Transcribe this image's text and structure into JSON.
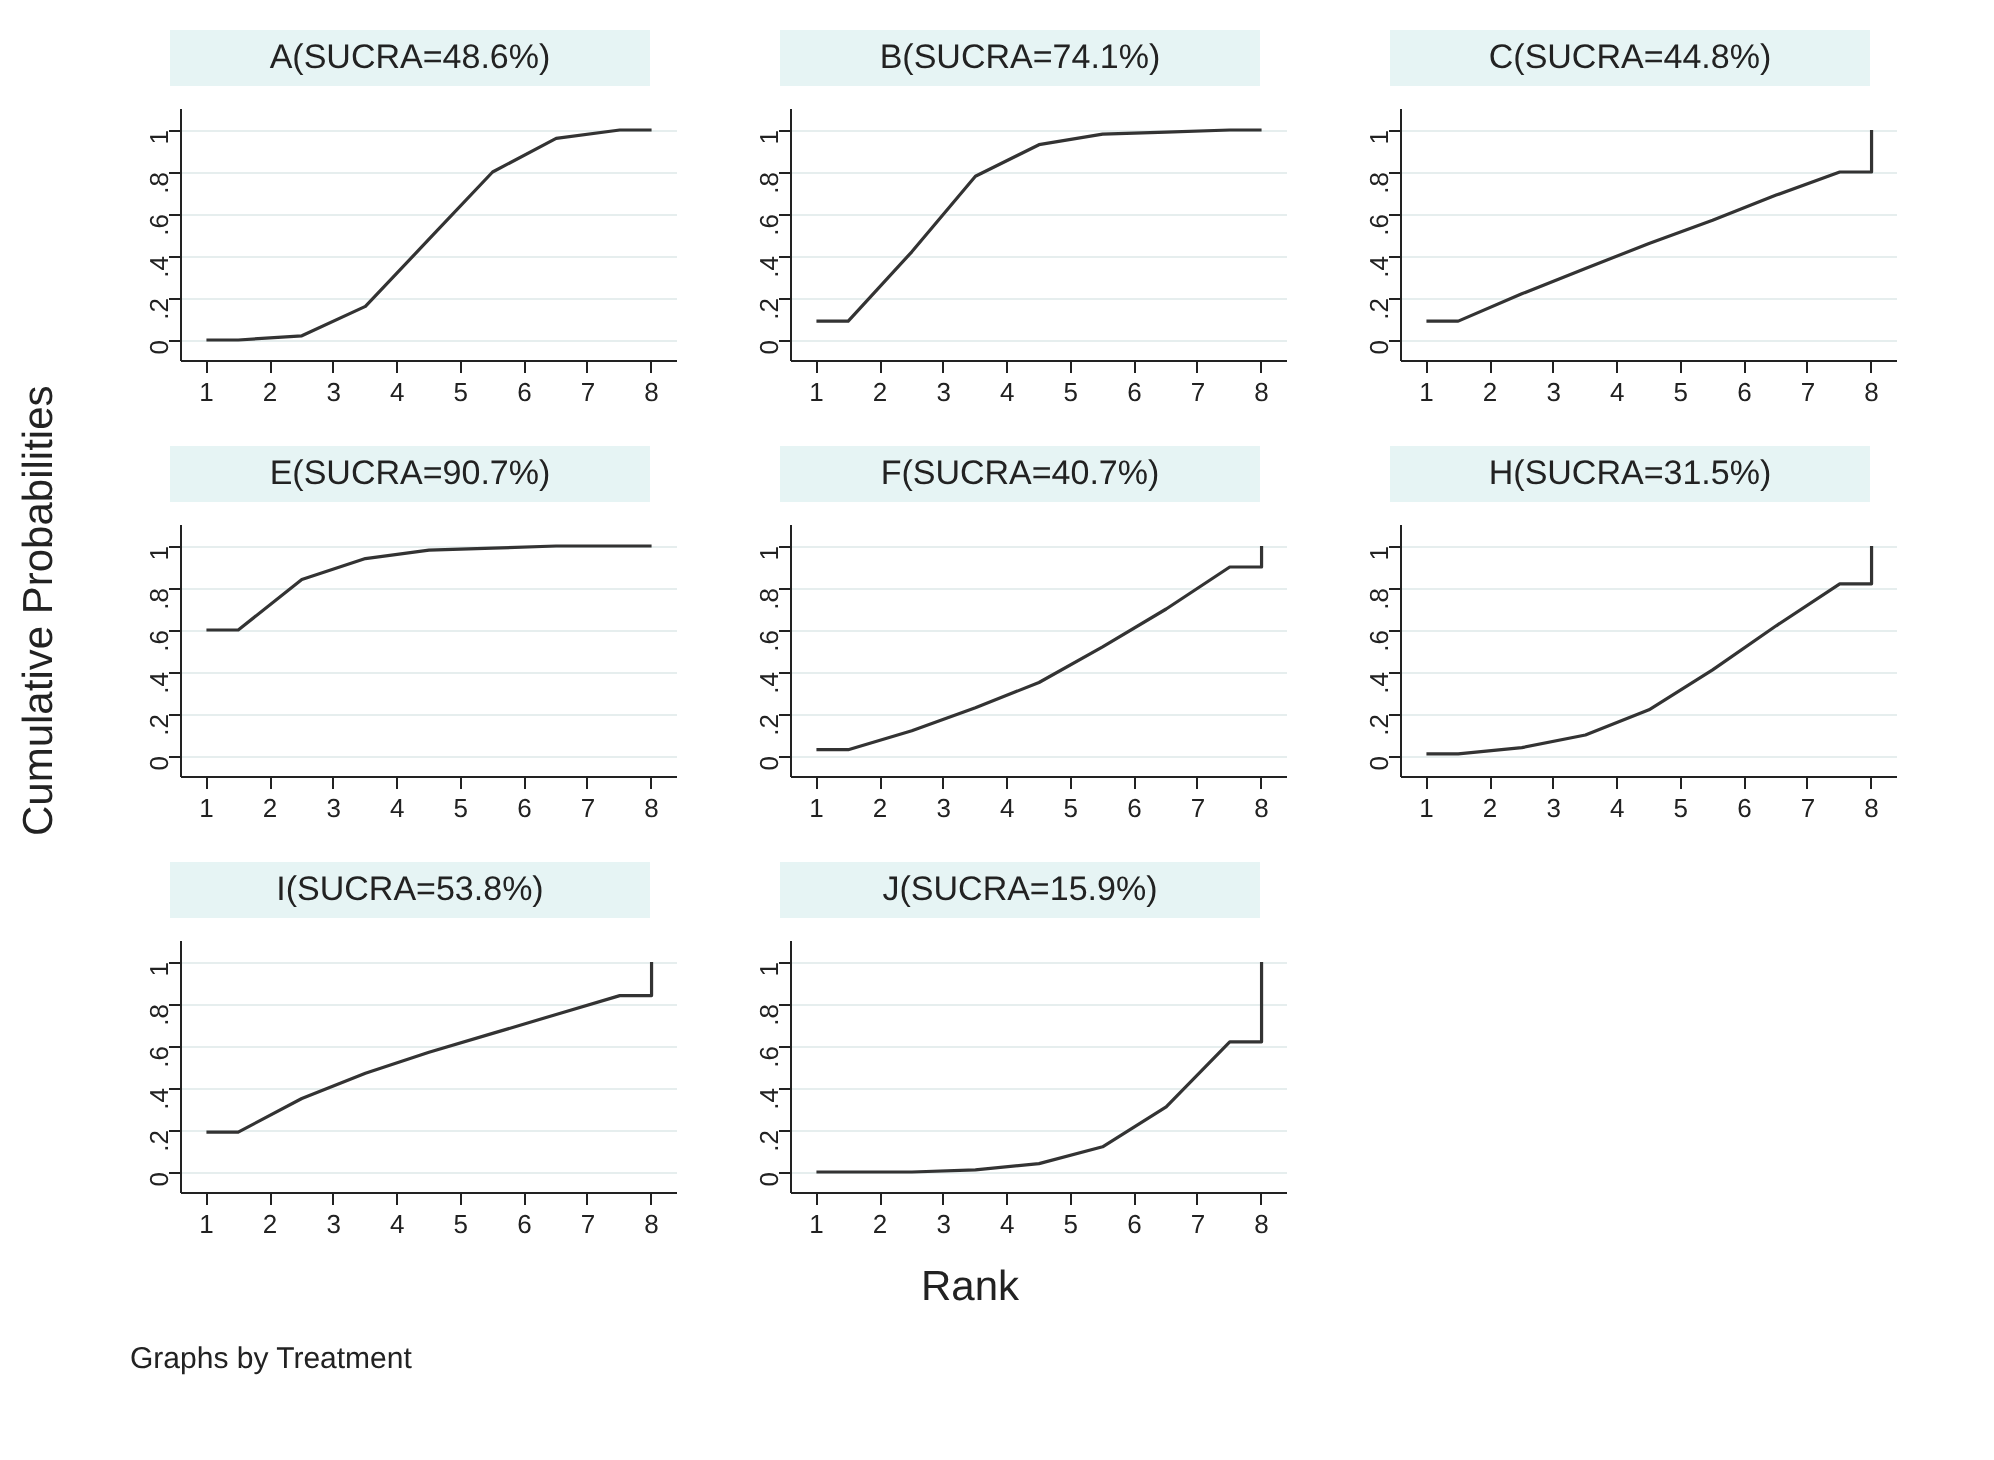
{
  "chart_data": [
    {
      "type": "line",
      "title": "A(SUCRA=48.6%)",
      "x": [
        1,
        1.5,
        2.5,
        3.5,
        4.5,
        5.5,
        6.5,
        7.5,
        8,
        8
      ],
      "values": [
        0,
        0,
        0.02,
        0.16,
        0.48,
        0.8,
        0.96,
        1,
        1,
        1
      ],
      "color": "#333333",
      "xlim": [
        0.6,
        8.4
      ],
      "ylim": [
        -0.1,
        1.1
      ],
      "xticks": [
        1,
        2,
        3,
        4,
        5,
        6,
        7,
        8
      ],
      "yticks": [
        0,
        {
          "value": 0.2,
          "label": ".2"
        },
        {
          "value": 0.4,
          "label": ".4"
        },
        {
          "value": 0.6,
          "label": ".6"
        },
        {
          "value": 0.8,
          "label": ".8"
        },
        1
      ],
      "grid": "y"
    },
    {
      "type": "line",
      "title": "B(SUCRA=74.1%)",
      "x": [
        1,
        1.5,
        2.5,
        3.5,
        4.5,
        5.5,
        6.5,
        7.5,
        8,
        8
      ],
      "values": [
        0.09,
        0.09,
        0.42,
        0.78,
        0.93,
        0.98,
        0.99,
        1,
        1,
        1
      ],
      "color": "#333333",
      "xlim": [
        0.6,
        8.4
      ],
      "ylim": [
        -0.1,
        1.1
      ],
      "xticks": [
        1,
        2,
        3,
        4,
        5,
        6,
        7,
        8
      ],
      "yticks": [
        0,
        {
          "value": 0.2,
          "label": ".2"
        },
        {
          "value": 0.4,
          "label": ".4"
        },
        {
          "value": 0.6,
          "label": ".6"
        },
        {
          "value": 0.8,
          "label": ".8"
        },
        1
      ],
      "grid": "y"
    },
    {
      "type": "line",
      "title": "C(SUCRA=44.8%)",
      "x": [
        1,
        1.5,
        2.5,
        3.5,
        4.5,
        5.5,
        6.5,
        7.5,
        8,
        8
      ],
      "values": [
        0.09,
        0.09,
        0.22,
        0.34,
        0.46,
        0.57,
        0.69,
        0.8,
        0.8,
        1
      ],
      "color": "#333333",
      "xlim": [
        0.6,
        8.4
      ],
      "ylim": [
        -0.1,
        1.1
      ],
      "xticks": [
        1,
        2,
        3,
        4,
        5,
        6,
        7,
        8
      ],
      "yticks": [
        0,
        {
          "value": 0.2,
          "label": ".2"
        },
        {
          "value": 0.4,
          "label": ".4"
        },
        {
          "value": 0.6,
          "label": ".6"
        },
        {
          "value": 0.8,
          "label": ".8"
        },
        1
      ],
      "grid": "y"
    },
    {
      "type": "line",
      "title": "E(SUCRA=90.7%)",
      "ylabel": "Cumulative Probabilities",
      "x": [
        1,
        1.5,
        2.5,
        3.5,
        4.5,
        5.5,
        6.5,
        7.5,
        8,
        8
      ],
      "values": [
        0.6,
        0.6,
        0.84,
        0.94,
        0.98,
        0.99,
        1,
        1,
        1,
        1
      ],
      "color": "#333333",
      "xlim": [
        0.6,
        8.4
      ],
      "ylim": [
        -0.1,
        1.1
      ],
      "xticks": [
        1,
        2,
        3,
        4,
        5,
        6,
        7,
        8
      ],
      "yticks": [
        0,
        {
          "value": 0.2,
          "label": ".2"
        },
        {
          "value": 0.4,
          "label": ".4"
        },
        {
          "value": 0.6,
          "label": ".6"
        },
        {
          "value": 0.8,
          "label": ".8"
        },
        1
      ],
      "grid": "y"
    },
    {
      "type": "line",
      "title": "F(SUCRA=40.7%)",
      "x": [
        1,
        1.5,
        2.5,
        3.5,
        4.5,
        5.5,
        6.5,
        7.5,
        8,
        8
      ],
      "values": [
        0.03,
        0.03,
        0.12,
        0.23,
        0.35,
        0.52,
        0.7,
        0.9,
        0.9,
        1
      ],
      "color": "#333333",
      "xlim": [
        0.6,
        8.4
      ],
      "ylim": [
        -0.1,
        1.1
      ],
      "xticks": [
        1,
        2,
        3,
        4,
        5,
        6,
        7,
        8
      ],
      "yticks": [
        0,
        {
          "value": 0.2,
          "label": ".2"
        },
        {
          "value": 0.4,
          "label": ".4"
        },
        {
          "value": 0.6,
          "label": ".6"
        },
        {
          "value": 0.8,
          "label": ".8"
        },
        1
      ],
      "grid": "y"
    },
    {
      "type": "line",
      "title": "H(SUCRA=31.5%)",
      "x": [
        1,
        1.5,
        2.5,
        3.5,
        4.5,
        5.5,
        6.5,
        7.5,
        8,
        8
      ],
      "values": [
        0.01,
        0.01,
        0.04,
        0.1,
        0.22,
        0.41,
        0.62,
        0.82,
        0.82,
        1
      ],
      "color": "#333333",
      "xlim": [
        0.6,
        8.4
      ],
      "ylim": [
        -0.1,
        1.1
      ],
      "xticks": [
        1,
        2,
        3,
        4,
        5,
        6,
        7,
        8
      ],
      "yticks": [
        0,
        {
          "value": 0.2,
          "label": ".2"
        },
        {
          "value": 0.4,
          "label": ".4"
        },
        {
          "value": 0.6,
          "label": ".6"
        },
        {
          "value": 0.8,
          "label": ".8"
        },
        1
      ],
      "grid": "y"
    },
    {
      "type": "line",
      "title": "I(SUCRA=53.8%)",
      "annotations": [
        "Graphs by Treatment"
      ],
      "x": [
        1,
        1.5,
        2.5,
        3.5,
        4.5,
        5.5,
        6.5,
        7.5,
        8,
        8
      ],
      "values": [
        0.19,
        0.19,
        0.35,
        0.47,
        0.57,
        0.66,
        0.75,
        0.84,
        0.84,
        1
      ],
      "color": "#333333",
      "xlim": [
        0.6,
        8.4
      ],
      "ylim": [
        -0.1,
        1.1
      ],
      "xticks": [
        1,
        2,
        3,
        4,
        5,
        6,
        7,
        8
      ],
      "yticks": [
        0,
        {
          "value": 0.2,
          "label": ".2"
        },
        {
          "value": 0.4,
          "label": ".4"
        },
        {
          "value": 0.6,
          "label": ".6"
        },
        {
          "value": 0.8,
          "label": ".8"
        },
        1
      ],
      "grid": "y"
    },
    {
      "type": "line",
      "title": "J(SUCRA=15.9%)",
      "xlabel": "Rank",
      "x": [
        1,
        1.5,
        2.5,
        3.5,
        4.5,
        5.5,
        6.5,
        7.5,
        8,
        8
      ],
      "values": [
        0,
        0,
        0,
        0.01,
        0.04,
        0.12,
        0.31,
        0.62,
        0.62,
        1
      ],
      "color": "#333333",
      "xlim": [
        0.6,
        8.4
      ],
      "ylim": [
        -0.1,
        1.1
      ],
      "xticks": [
        1,
        2,
        3,
        4,
        5,
        6,
        7,
        8
      ],
      "yticks": [
        0,
        {
          "value": 0.2,
          "label": ".2"
        },
        {
          "value": 0.4,
          "label": ".4"
        },
        {
          "value": 0.6,
          "label": ".6"
        },
        {
          "value": 0.8,
          "label": ".8"
        },
        1
      ],
      "grid": "y"
    }
  ]
}
